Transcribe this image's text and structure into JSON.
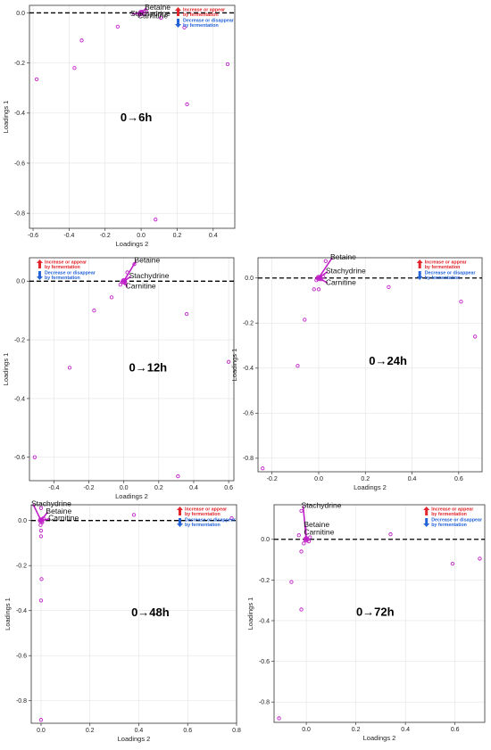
{
  "chart_data": [
    {
      "type": "scatter",
      "title": "0→6h",
      "xlabel": "Loadings 2",
      "ylabel": "Loadings 1",
      "xlim": [
        -0.62,
        0.52
      ],
      "ylim": [
        -0.86,
        0.03
      ],
      "xticks": [
        -0.6,
        -0.4,
        -0.2,
        0.0,
        0.2,
        0.4
      ],
      "yticks": [
        0.0,
        -0.2,
        -0.4,
        -0.6,
        -0.8
      ],
      "xtick_labels": [
        "-0.6",
        "-0.4",
        "-0.2",
        "0.0",
        "0.2",
        "0.4"
      ],
      "ytick_labels": [
        "0.0",
        "-0.2",
        "-0.4",
        "-0.6",
        "-0.8"
      ],
      "grid": true,
      "reference_line_y": 0,
      "legend": {
        "placement": "top-right",
        "up": "Increase or appear by fermentation",
        "down": "Decrease or disappear by fermentation"
      },
      "points": [
        {
          "x": -0.58,
          "y": -0.265
        },
        {
          "x": -0.37,
          "y": -0.22
        },
        {
          "x": -0.33,
          "y": -0.11
        },
        {
          "x": -0.13,
          "y": -0.055
        },
        {
          "x": 0.08,
          "y": -0.825
        },
        {
          "x": 0.24,
          "y": -0.058
        },
        {
          "x": 0.255,
          "y": -0.365
        },
        {
          "x": 0.48,
          "y": -0.205
        },
        {
          "x": 0.11,
          "y": -0.02
        },
        {
          "x": 0.0,
          "y": 0.002
        },
        {
          "x": -0.01,
          "y": -0.004
        },
        {
          "x": 0.02,
          "y": -0.006
        },
        {
          "x": 0.005,
          "y": 0.004
        },
        {
          "x": 0.03,
          "y": 0.006
        }
      ],
      "annotations": [
        {
          "text": "Betaine",
          "x": 0.02,
          "y": 0.013
        },
        {
          "text": "Stachydrine",
          "x": -0.06,
          "y": -0.012
        },
        {
          "text": "Carnitine",
          "x": -0.02,
          "y": -0.022
        }
      ]
    },
    {
      "type": "scatter",
      "title": "0→12h",
      "xlabel": "Loadings 2",
      "ylabel": "Loadings 1",
      "xlim": [
        -0.54,
        0.63
      ],
      "ylim": [
        -0.68,
        0.08
      ],
      "xticks": [
        -0.4,
        -0.2,
        0.0,
        0.2,
        0.4,
        0.6
      ],
      "yticks": [
        0.0,
        -0.2,
        -0.4,
        -0.6
      ],
      "xtick_labels": [
        "-0.4",
        "-0.2",
        "0.0",
        "0.2",
        "0.4",
        "0.6"
      ],
      "ytick_labels": [
        "0.0",
        "-0.2",
        "-0.4",
        "-0.6"
      ],
      "grid": true,
      "reference_line_y": 0,
      "legend": {
        "placement": "top-left",
        "up": "Increase or appear by fermentation",
        "down": "Decrease or disappear by fermentation"
      },
      "points": [
        {
          "x": -0.51,
          "y": -0.6
        },
        {
          "x": -0.31,
          "y": -0.295
        },
        {
          "x": -0.17,
          "y": -0.1
        },
        {
          "x": -0.07,
          "y": -0.055
        },
        {
          "x": 0.06,
          "y": 0.058
        },
        {
          "x": 0.31,
          "y": -0.665
        },
        {
          "x": 0.36,
          "y": -0.112
        },
        {
          "x": 0.6,
          "y": -0.275
        },
        {
          "x": 0.02,
          "y": 0.03
        },
        {
          "x": 0.0,
          "y": 0.002
        },
        {
          "x": -0.01,
          "y": -0.004
        },
        {
          "x": 0.01,
          "y": -0.008
        },
        {
          "x": -0.02,
          "y": -0.012
        }
      ],
      "annotations": [
        {
          "text": "Betaine",
          "x": 0.06,
          "y": 0.063
        },
        {
          "text": "Stachydrine",
          "x": 0.03,
          "y": 0.01
        },
        {
          "text": "Carnitine",
          "x": 0.01,
          "y": -0.025
        }
      ]
    },
    {
      "type": "scatter",
      "title": "0→24h",
      "xlabel": "Loadings 2",
      "ylabel": "Loadings 1",
      "xlim": [
        -0.26,
        0.7
      ],
      "ylim": [
        -0.86,
        0.09
      ],
      "xticks": [
        -0.2,
        0.0,
        0.2,
        0.4,
        0.6
      ],
      "yticks": [
        0.0,
        -0.2,
        -0.4,
        -0.6,
        -0.8
      ],
      "xtick_labels": [
        "-0.2",
        "0.0",
        "0.2",
        "0.4",
        "0.6"
      ],
      "ytick_labels": [
        "0.0",
        "-0.2",
        "-0.4",
        "-0.6",
        "-0.8"
      ],
      "grid": true,
      "reference_line_y": 0,
      "legend": {
        "placement": "top-right",
        "up": "Increase or appear by fermentation",
        "down": "Decrease or disappear by fermentation"
      },
      "points": [
        {
          "x": -0.24,
          "y": -0.845
        },
        {
          "x": -0.09,
          "y": -0.39
        },
        {
          "x": -0.06,
          "y": -0.185
        },
        {
          "x": -0.02,
          "y": -0.05
        },
        {
          "x": 0.03,
          "y": 0.075
        },
        {
          "x": 0.3,
          "y": -0.04
        },
        {
          "x": 0.61,
          "y": -0.105
        },
        {
          "x": 0.67,
          "y": -0.26
        },
        {
          "x": 0.0,
          "y": 0.002
        },
        {
          "x": 0.01,
          "y": -0.006
        },
        {
          "x": -0.01,
          "y": -0.01
        },
        {
          "x": 0.0,
          "y": -0.05
        },
        {
          "x": 0.02,
          "y": 0.006
        }
      ],
      "annotations": [
        {
          "text": "Betaine",
          "x": 0.05,
          "y": 0.082
        },
        {
          "text": "Stachydrine",
          "x": 0.03,
          "y": 0.02
        },
        {
          "text": "Carnitine",
          "x": 0.03,
          "y": -0.03
        }
      ]
    },
    {
      "type": "scatter",
      "title": "0→48h",
      "xlabel": "Loadings 2",
      "ylabel": "Loadings 1",
      "xlim": [
        -0.04,
        0.8
      ],
      "ylim": [
        -0.9,
        0.07
      ],
      "xticks": [
        0.0,
        0.2,
        0.4,
        0.6,
        0.8
      ],
      "yticks": [
        0.0,
        -0.2,
        -0.4,
        -0.6,
        -0.8
      ],
      "xtick_labels": [
        "0.0",
        "0.2",
        "0.4",
        "0.6",
        "0.8"
      ],
      "ytick_labels": [
        "0.0",
        "-0.2",
        "-0.4",
        "-0.6",
        "-0.8"
      ],
      "grid": true,
      "reference_line_y": 0,
      "legend": {
        "placement": "top-right",
        "up": "Increase or appear by fermentation",
        "down": "Decrease or disappear by fermentation"
      },
      "points": [
        {
          "x": 0.0,
          "y": -0.885
        },
        {
          "x": 0.0,
          "y": -0.355
        },
        {
          "x": 0.002,
          "y": -0.26
        },
        {
          "x": 0.0,
          "y": -0.07
        },
        {
          "x": 0.0,
          "y": -0.045
        },
        {
          "x": 0.38,
          "y": 0.025
        },
        {
          "x": 0.78,
          "y": 0.01
        },
        {
          "x": 0.0,
          "y": 0.055
        },
        {
          "x": 0.0,
          "y": 0.002
        },
        {
          "x": 0.005,
          "y": -0.008
        },
        {
          "x": -0.002,
          "y": -0.02
        },
        {
          "x": 0.01,
          "y": 0.01
        }
      ],
      "annotations": [
        {
          "text": "Stachydrine",
          "x": -0.04,
          "y": 0.065
        },
        {
          "text": "Betaine",
          "x": 0.02,
          "y": 0.03
        },
        {
          "text": "Carnitine",
          "x": 0.03,
          "y": 0.0
        }
      ]
    },
    {
      "type": "scatter",
      "title": "0→72h",
      "xlabel": "Loadings 2",
      "ylabel": "Loadings 1",
      "xlim": [
        -0.13,
        0.72
      ],
      "ylim": [
        -0.9,
        0.17
      ],
      "xticks": [
        0.0,
        0.2,
        0.4,
        0.6
      ],
      "yticks": [
        0.0,
        -0.2,
        -0.4,
        -0.6,
        -0.8
      ],
      "xtick_labels": [
        "0.0",
        "0.2",
        "0.4",
        "0.6"
      ],
      "ytick_labels": [
        "0.0",
        "-0.2",
        "-0.4",
        "-0.6",
        "-0.8"
      ],
      "grid": true,
      "reference_line_y": 0,
      "legend": {
        "placement": "top-right",
        "up": "Increase or appear by fermentation",
        "down": "Decrease or disappear by fermentation"
      },
      "points": [
        {
          "x": -0.11,
          "y": -0.88
        },
        {
          "x": -0.06,
          "y": -0.21
        },
        {
          "x": -0.02,
          "y": -0.345
        },
        {
          "x": -0.02,
          "y": -0.06
        },
        {
          "x": -0.02,
          "y": 0.14
        },
        {
          "x": 0.34,
          "y": 0.025
        },
        {
          "x": 0.59,
          "y": -0.12
        },
        {
          "x": 0.7,
          "y": -0.095
        },
        {
          "x": -0.03,
          "y": 0.02
        },
        {
          "x": 0.0,
          "y": 0.002
        },
        {
          "x": 0.01,
          "y": -0.01
        },
        {
          "x": -0.01,
          "y": -0.02
        },
        {
          "x": 0.015,
          "y": 0.01
        }
      ],
      "annotations": [
        {
          "text": "Stachydrine",
          "x": -0.02,
          "y": 0.155
        },
        {
          "text": "Betaine",
          "x": -0.01,
          "y": 0.06
        },
        {
          "text": "Carnitine",
          "x": -0.01,
          "y": 0.022
        }
      ]
    }
  ]
}
